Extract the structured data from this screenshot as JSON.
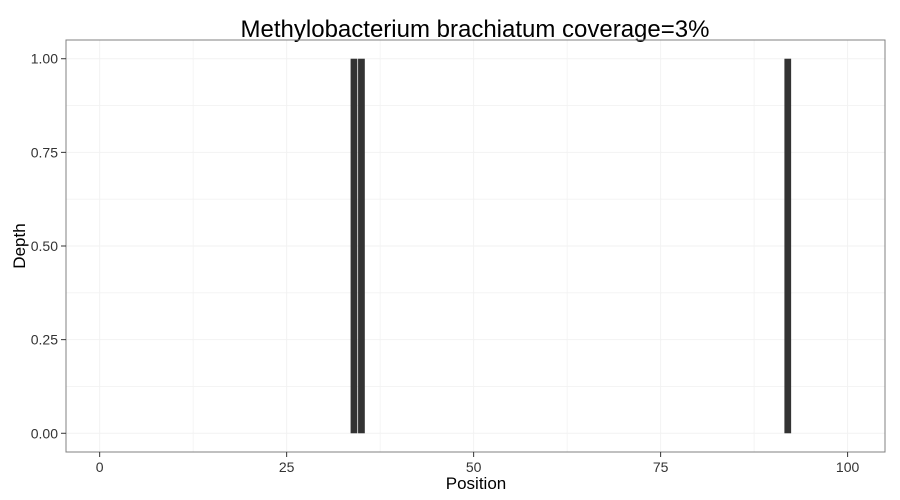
{
  "chart_data": {
    "type": "bar",
    "title": "Methylobacterium brachiatum coverage=3%",
    "xlabel": "Position",
    "ylabel": "Depth",
    "xlim": [
      -4.5,
      105
    ],
    "ylim": [
      -0.05,
      1.05
    ],
    "x_ticks": [
      0,
      25,
      50,
      75,
      100
    ],
    "x_tick_labels": [
      "0",
      "25",
      "50",
      "75",
      "100"
    ],
    "y_ticks": [
      0,
      0.25,
      0.5,
      0.75,
      1.0
    ],
    "y_tick_labels": [
      "0.00",
      "0.25",
      "0.50",
      "0.75",
      "1.00"
    ],
    "x": [
      34,
      35,
      92
    ],
    "values": [
      1,
      1,
      1
    ],
    "bar_color": "#333333",
    "grid": true,
    "grid_color": "#f2f2f2",
    "panel_border_color": "#808080",
    "background": "#ffffff"
  }
}
